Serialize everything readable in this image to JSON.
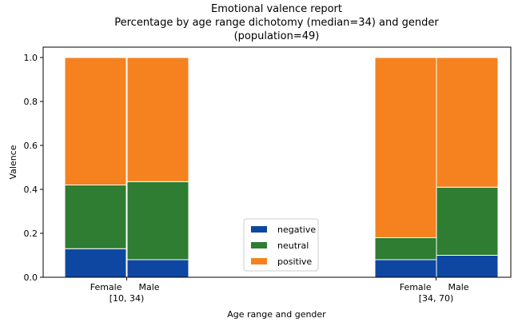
{
  "chart_data": {
    "type": "bar",
    "stacked": true,
    "title_lines": [
      "Emotional valence report",
      "Percentage by age range dichotomy (median=34) and gender",
      "(population=49)"
    ],
    "xlabel": "Age range and gender",
    "ylabel": "Valence",
    "ylim": [
      0,
      1.0
    ],
    "yticks": [
      "0.0",
      "0.2",
      "0.4",
      "0.6",
      "0.8",
      "1.0"
    ],
    "groups": [
      {
        "label": "[10, 34)",
        "bars": [
          "Female",
          "Male"
        ]
      },
      {
        "label": "[34, 70)",
        "bars": [
          "Female",
          "Male"
        ]
      }
    ],
    "categories": [
      "Female [10, 34)",
      "Male [10, 34)",
      "Female [34, 70)",
      "Male [34, 70)"
    ],
    "series": [
      {
        "name": "negative",
        "color": "#0d47a1",
        "values": [
          0.13,
          0.08,
          0.08,
          0.1
        ]
      },
      {
        "name": "neutral",
        "color": "#2e7d32",
        "values": [
          0.29,
          0.355,
          0.1,
          0.31
        ]
      },
      {
        "name": "positive",
        "color": "#f5821f",
        "values": [
          0.58,
          0.565,
          0.82,
          0.59
        ]
      }
    ],
    "legend_position": "bottom-center",
    "grid": false
  }
}
